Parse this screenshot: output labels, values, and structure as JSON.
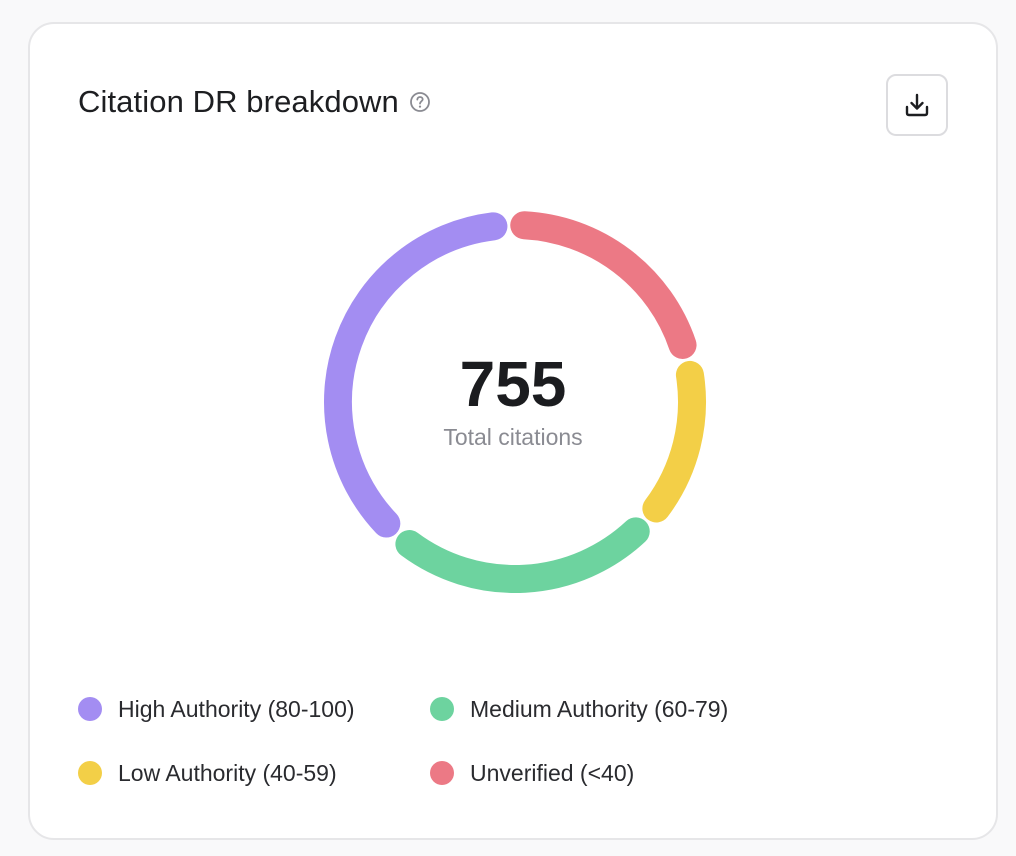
{
  "card": {
    "title": "Citation DR breakdown",
    "help_icon": "question-circle-icon",
    "download_icon": "download-icon"
  },
  "summary": {
    "total_value": "755",
    "total_label": "Total citations"
  },
  "chart_data": {
    "type": "pie",
    "variant": "donut",
    "total": 755,
    "segments": [
      {
        "label": "High Authority (80-100)",
        "value": 286,
        "color": "#a38df2"
      },
      {
        "label": "Medium Authority (60-79)",
        "value": 188,
        "color": "#6dd39f"
      },
      {
        "label": "Low Authority (40-59)",
        "value": 117,
        "color": "#f3cf47"
      },
      {
        "label": "Unverified (<40)",
        "value": 164,
        "color": "#ec7985"
      }
    ]
  },
  "legend": {
    "items": [
      {
        "label": "High Authority (80-100)",
        "color": "#a38df2"
      },
      {
        "label": "Medium Authority (60-79)",
        "color": "#6dd39f"
      },
      {
        "label": "Low Authority (40-59)",
        "color": "#f3cf47"
      },
      {
        "label": "Unverified (<40)",
        "color": "#ec7985"
      }
    ]
  }
}
